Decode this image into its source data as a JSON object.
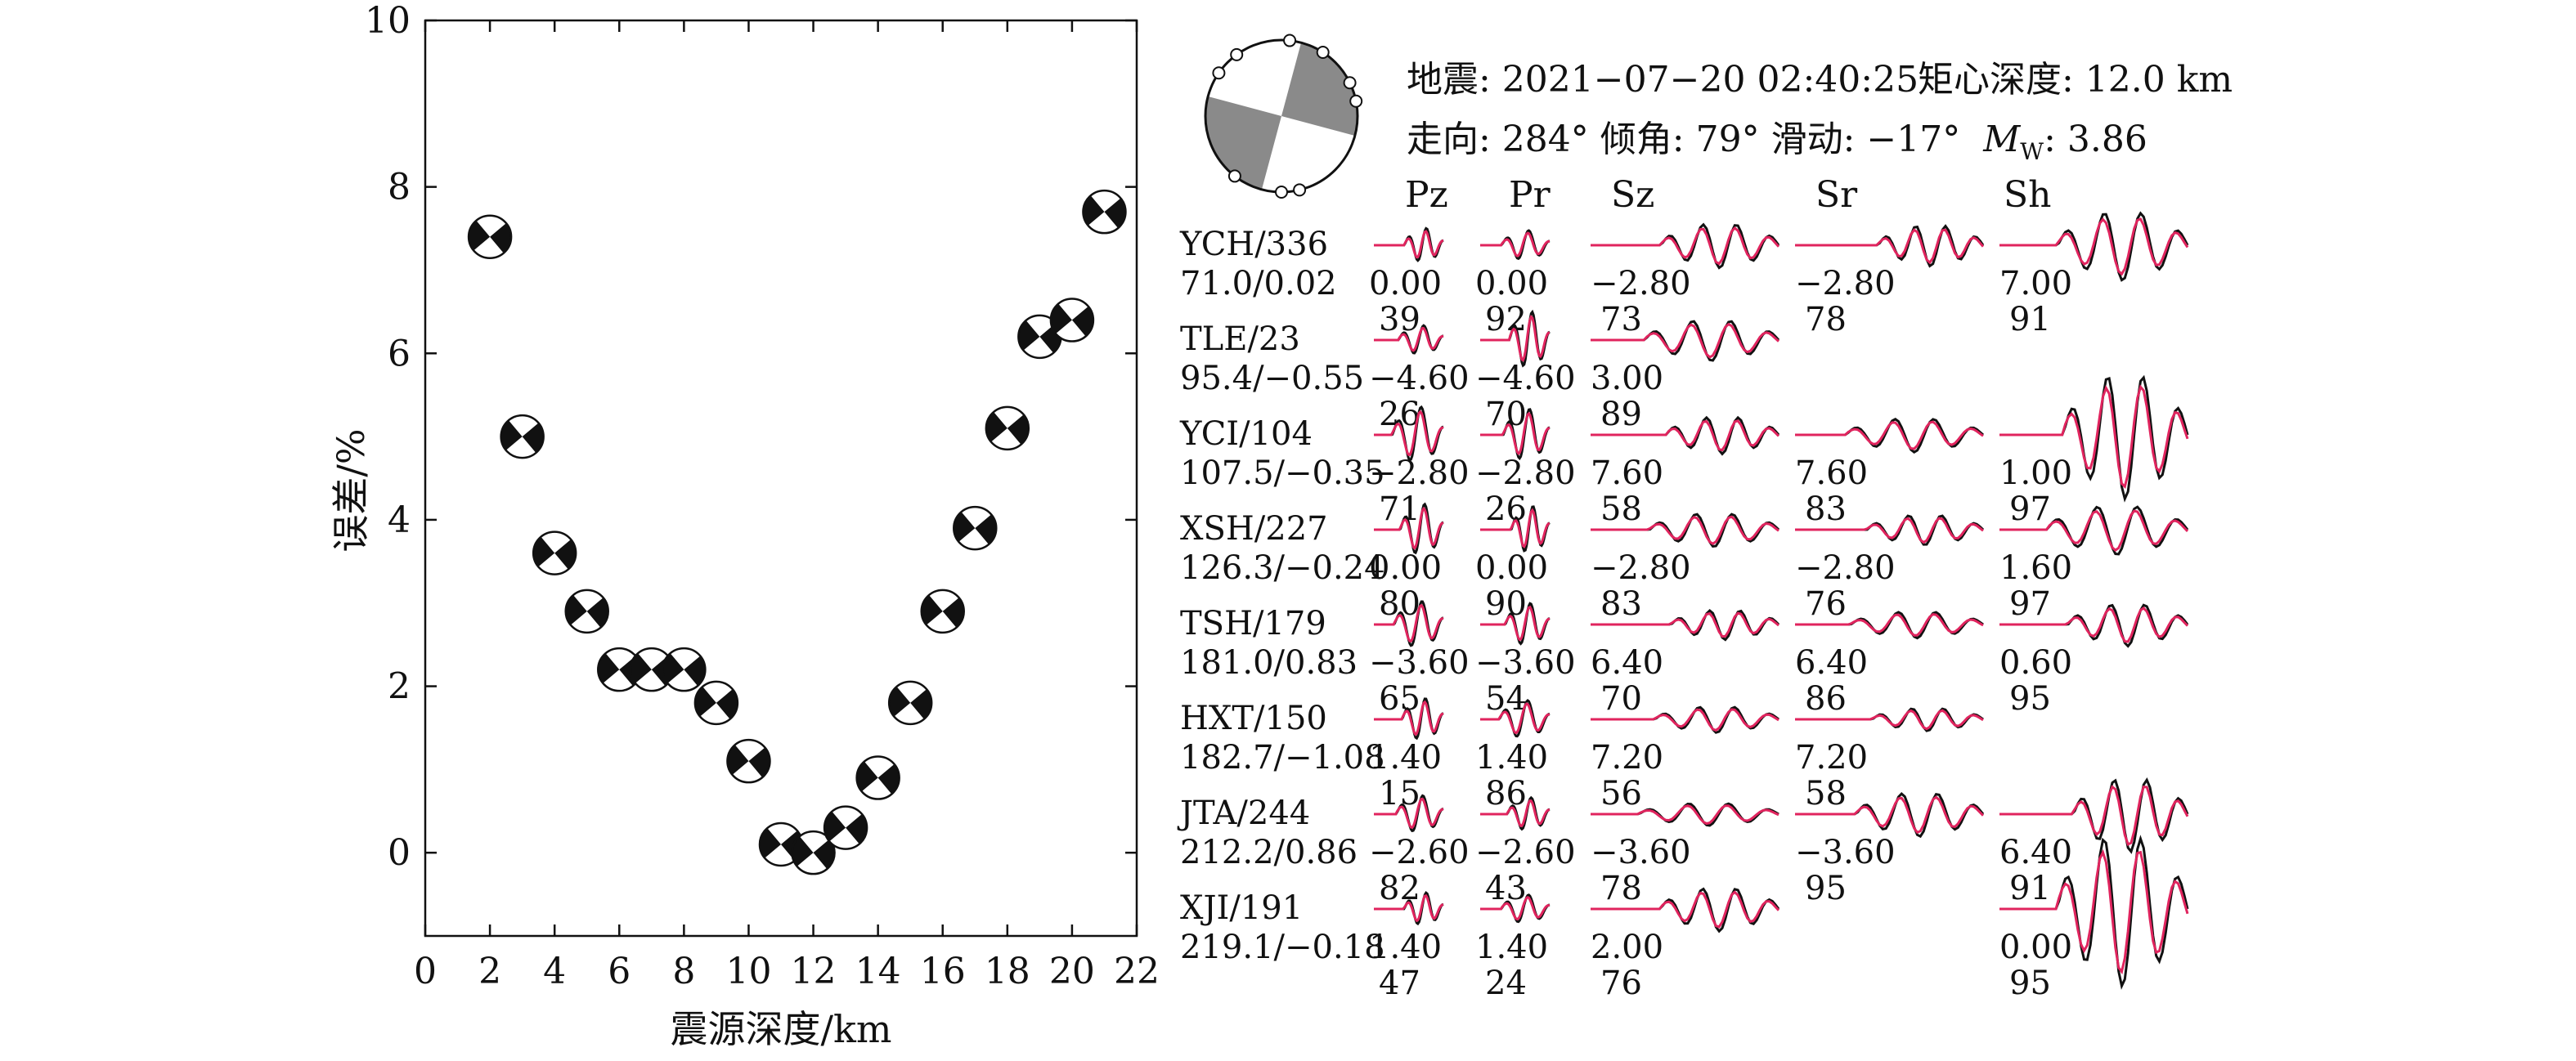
{
  "chart_data": [
    {
      "type": "scatter",
      "marker": "focal-mechanism-beachball",
      "xlabel": "震源深度/km",
      "ylabel": "误差/%",
      "xlim": [
        0,
        22
      ],
      "ylim": [
        -1,
        10
      ],
      "xticks": [
        0,
        2,
        4,
        6,
        8,
        10,
        12,
        14,
        16,
        18,
        20,
        22
      ],
      "yticks": [
        0,
        2,
        4,
        6,
        8,
        10
      ],
      "grid": false,
      "points": [
        {
          "x": 2,
          "y": 7.4
        },
        {
          "x": 3,
          "y": 5.0
        },
        {
          "x": 4,
          "y": 3.6
        },
        {
          "x": 5,
          "y": 2.9
        },
        {
          "x": 6,
          "y": 2.2
        },
        {
          "x": 7,
          "y": 2.2
        },
        {
          "x": 8,
          "y": 2.2
        },
        {
          "x": 9,
          "y": 1.8
        },
        {
          "x": 10,
          "y": 1.1
        },
        {
          "x": 11,
          "y": 0.1
        },
        {
          "x": 12,
          "y": 0.0
        },
        {
          "x": 13,
          "y": 0.3
        },
        {
          "x": 14,
          "y": 0.9
        },
        {
          "x": 15,
          "y": 1.8
        },
        {
          "x": 16,
          "y": 2.9
        },
        {
          "x": 17,
          "y": 3.9
        },
        {
          "x": 18,
          "y": 5.1
        },
        {
          "x": 19,
          "y": 6.2
        },
        {
          "x": 20,
          "y": 6.4
        },
        {
          "x": 21,
          "y": 7.7
        }
      ]
    },
    {
      "type": "line",
      "subtype": "waveform-fit",
      "header": {
        "line1_a": "地震: 2021−07−20 02:40:25",
        "line1_b": "矩心深度: 12.0 km",
        "line2_main": "走向: 284° 倾角: 79° 滑动: −17°",
        "mw_M": "M",
        "mw_sub": "W",
        "mw_value": ": 3.86"
      },
      "components": [
        "Pz",
        "Pr",
        "Sz",
        "Sr",
        "Sh"
      ],
      "series_colors": {
        "observed": "#111111",
        "synthetic": "#e0245e"
      },
      "stations": [
        {
          "name": "YCH/336",
          "info": "71.0/0.02",
          "cells": [
            [
              "0.00",
              "39"
            ],
            [
              "0.00",
              "92"
            ],
            [
              "−2.80",
              "73"
            ],
            [
              "−2.80",
              "78"
            ],
            [
              "7.00",
              "91"
            ]
          ]
        },
        {
          "name": "TLE/23",
          "info": "95.4/−0.55",
          "cells": [
            [
              "−4.60",
              "26"
            ],
            [
              "−4.60",
              "70"
            ],
            [
              "3.00",
              "89"
            ],
            null,
            null
          ]
        },
        {
          "name": "YCI/104",
          "info": "107.5/−0.35",
          "cells": [
            [
              "−2.80",
              "71"
            ],
            [
              "−2.80",
              "26"
            ],
            [
              "7.60",
              "58"
            ],
            [
              "7.60",
              "83"
            ],
            [
              "1.00",
              "97"
            ]
          ]
        },
        {
          "name": "XSH/227",
          "info": "126.3/−0.24",
          "cells": [
            [
              "0.00",
              "80"
            ],
            [
              "0.00",
              "90"
            ],
            [
              "−2.80",
              "83"
            ],
            [
              "−2.80",
              "76"
            ],
            [
              "1.60",
              "97"
            ]
          ]
        },
        {
          "name": "TSH/179",
          "info": "181.0/0.83",
          "cells": [
            [
              "−3.60",
              "65"
            ],
            [
              "−3.60",
              "54"
            ],
            [
              "6.40",
              "70"
            ],
            [
              "6.40",
              "86"
            ],
            [
              "0.60",
              "95"
            ]
          ]
        },
        {
          "name": "HXT/150",
          "info": "182.7/−1.08",
          "cells": [
            [
              "1.40",
              "15"
            ],
            [
              "1.40",
              "86"
            ],
            [
              "7.20",
              "56"
            ],
            [
              "7.20",
              "58"
            ],
            null
          ]
        },
        {
          "name": "JTA/244",
          "info": "212.2/0.86",
          "cells": [
            [
              "−2.60",
              "82"
            ],
            [
              "−2.60",
              "43"
            ],
            [
              "−3.60",
              "78"
            ],
            [
              "−3.60",
              "95"
            ],
            [
              "6.40",
              "91"
            ]
          ]
        },
        {
          "name": "XJI/191",
          "info": "219.1/−0.18",
          "cells": [
            [
              "1.40",
              "47"
            ],
            [
              "1.40",
              "24"
            ],
            [
              "2.00",
              "76"
            ],
            null,
            [
              "0.00",
              "95"
            ]
          ]
        }
      ]
    }
  ]
}
